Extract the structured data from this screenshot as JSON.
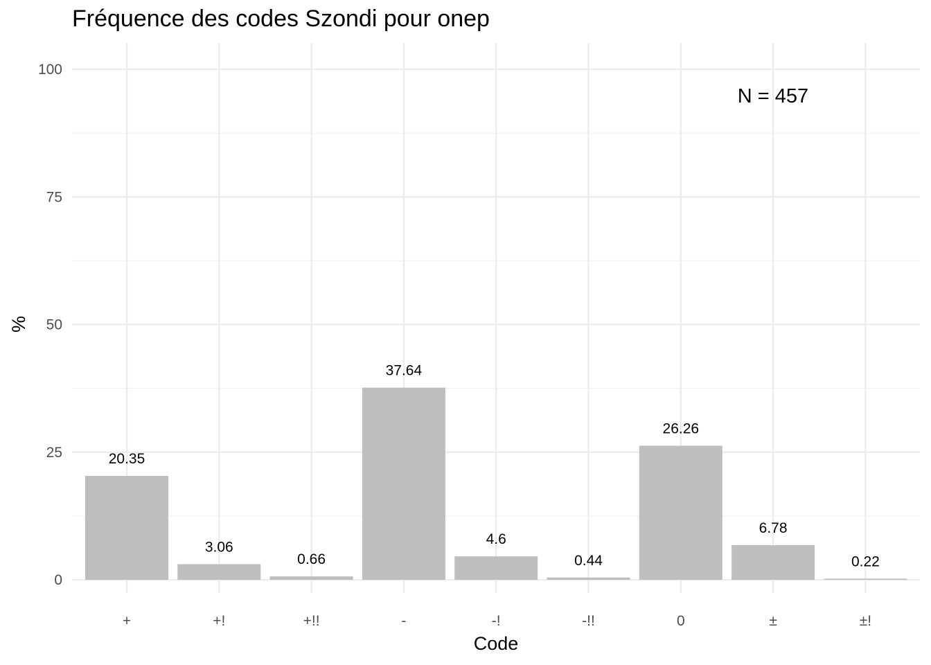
{
  "chart_data": {
    "type": "bar",
    "title": "Fréquence des codes Szondi pour onep",
    "xlabel": "Code",
    "ylabel": "%",
    "categories": [
      "+",
      "+!",
      "+!!",
      "-",
      "-!",
      "-!!",
      "0",
      "±",
      "±!"
    ],
    "values": [
      20.35,
      3.06,
      0.66,
      37.64,
      4.6,
      0.44,
      26.26,
      6.78,
      0.22
    ],
    "data_labels": [
      "20.35",
      "3.06",
      "0.66",
      "37.64",
      "4.6",
      "0.44",
      "26.26",
      "6.78",
      "0.22"
    ],
    "ylim": [
      0,
      100
    ],
    "yticks": [
      0,
      25,
      50,
      75,
      100
    ],
    "annotation": "N = 457",
    "bar_color": "#bebebe",
    "grid": true,
    "legend": false
  }
}
